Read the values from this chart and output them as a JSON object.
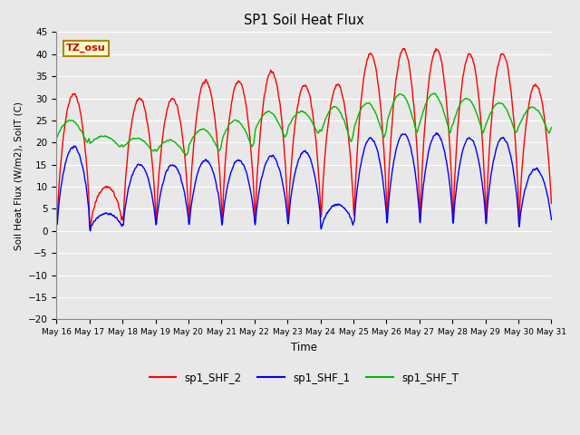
{
  "title": "SP1 Soil Heat Flux",
  "xlabel": "Time",
  "ylabel": "Soil Heat Flux (W/m2), SoilT (C)",
  "ylim": [
    -20,
    45
  ],
  "yticks": [
    -20,
    -15,
    -10,
    -5,
    0,
    5,
    10,
    15,
    20,
    25,
    30,
    35,
    40,
    45
  ],
  "x_tick_labels": [
    "May 16",
    "May 17",
    "May 18",
    "May 19",
    "May 20",
    "May 21",
    "May 22",
    "May 23",
    "May 24",
    "May 25",
    "May 26",
    "May 27",
    "May 28",
    "May 29",
    "May 30",
    "May 31"
  ],
  "color_shf2": "#ff0000",
  "color_shf1": "#0000ff",
  "color_shft": "#00bb00",
  "plot_bg_color": "#e8e8e8",
  "grid_color": "#ffffff",
  "legend_labels": [
    "sp1_SHF_2",
    "sp1_SHF_1",
    "sp1_SHF_T"
  ],
  "annotation_text": "TZ_osu",
  "annotation_bg": "#ffffcc",
  "annotation_border": "#aa8800",
  "figwidth": 6.4,
  "figheight": 4.8,
  "dpi": 100
}
